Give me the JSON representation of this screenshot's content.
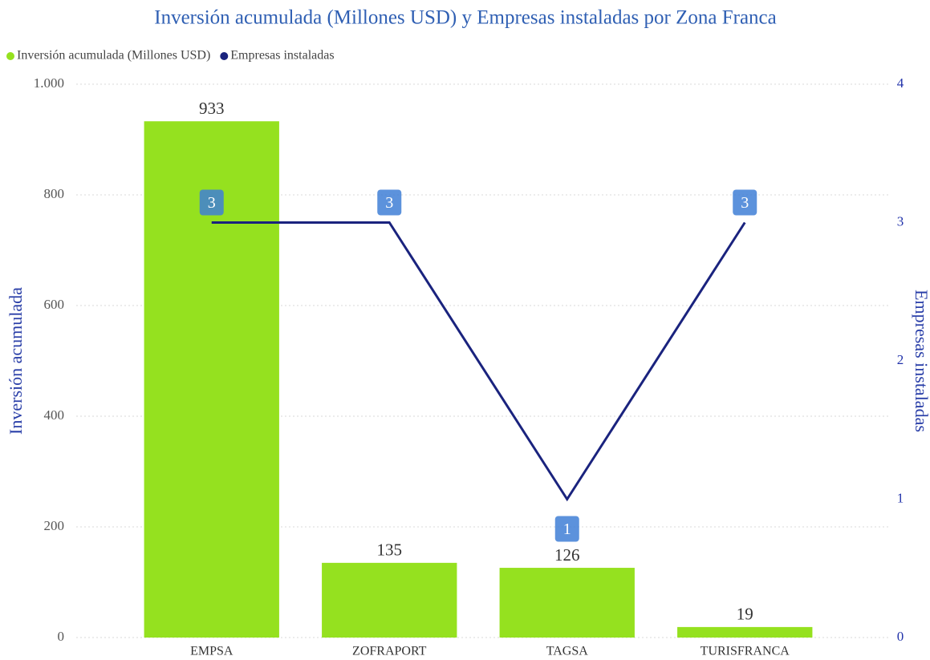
{
  "chart_data": {
    "type": "bar",
    "title": "Inversión acumulada (Millones USD) y Empresas instaladas por Zona Franca",
    "categories": [
      "EMPSA",
      "ZOFRAPORT",
      "TAGSA",
      "TURISFRANCA"
    ],
    "series": [
      {
        "name": "Inversión acumulada (Millones USD)",
        "type": "bar",
        "color": "#95e11f",
        "values": [
          933,
          135,
          126,
          19
        ]
      },
      {
        "name": "Empresas instaladas",
        "type": "line",
        "axis": "y2",
        "color": "#1a237e",
        "values": [
          3,
          3,
          1,
          3
        ]
      }
    ],
    "ylabel": "Inversión acumulada",
    "y2label": "Empresas instaladas",
    "ylim": [
      0,
      1000
    ],
    "yticks": [
      0,
      200,
      400,
      600,
      800,
      {
        "value": 1000,
        "label": "1.000"
      }
    ],
    "y2lim": [
      0,
      4
    ],
    "y2ticks": [
      0,
      1,
      2,
      3,
      4
    ],
    "grid": true,
    "legend": "top-left"
  }
}
